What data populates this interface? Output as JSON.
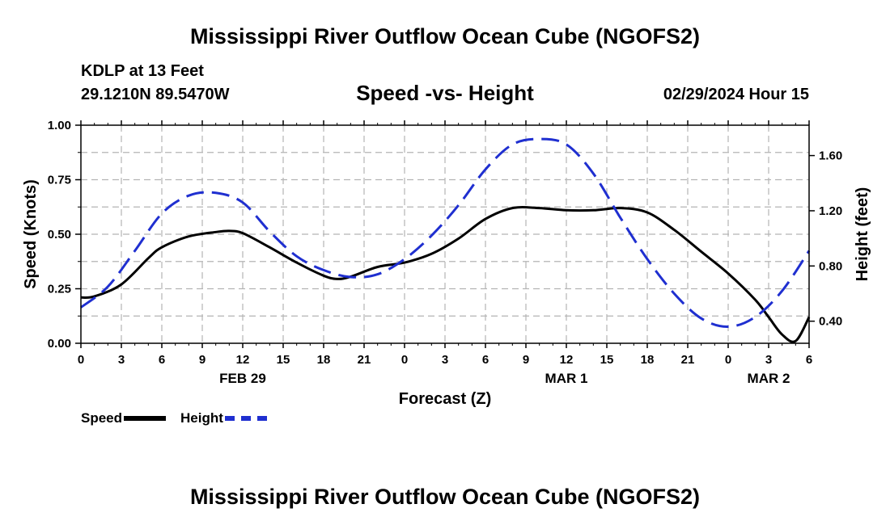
{
  "header": {
    "title": "Mississippi River Outflow Ocean Cube (NGOFS2)",
    "station": "KDLP at 13 Feet",
    "coordinates": "29.1210N  89.5470W",
    "subtitle": "Speed -vs- Height",
    "datetime": "02/29/2024 Hour 15"
  },
  "footer": {
    "title": "Mississippi River Outflow Ocean Cube (NGOFS2)"
  },
  "legend": {
    "speed_label": "Speed",
    "height_label": "Height"
  },
  "colors": {
    "speed": "#000000",
    "height": "#1f2fd0",
    "grid": "#b4b4b4"
  },
  "chart_data": {
    "type": "line",
    "title": "Speed -vs- Height",
    "xlabel": "Forecast (Z)",
    "ylabel": "Speed (Knots)",
    "y2label": "Height (feet)",
    "xlim": [
      0,
      54
    ],
    "ylim": [
      0,
      1.0
    ],
    "y2lim": [
      0.24,
      1.82
    ],
    "x_ticks": [
      0,
      3,
      6,
      9,
      12,
      15,
      18,
      21,
      24,
      27,
      30,
      33,
      36,
      39,
      42,
      45,
      48,
      51,
      54
    ],
    "x_tick_labels": [
      "0",
      "3",
      "6",
      "9",
      "12",
      "15",
      "18",
      "21",
      "0",
      "3",
      "6",
      "9",
      "12",
      "15",
      "18",
      "21",
      "0",
      "3",
      "6"
    ],
    "date_labels": [
      {
        "x": 12,
        "label": "FEB 29"
      },
      {
        "x": 36,
        "label": "MAR 1"
      },
      {
        "x": 51,
        "label": "MAR 2"
      }
    ],
    "y_ticks": [
      0,
      0.25,
      0.5,
      0.75,
      1.0
    ],
    "y_tick_labels": [
      "0.00",
      "0.25",
      "0.50",
      "0.75",
      "1.00"
    ],
    "y2_ticks": [
      0.4,
      0.8,
      1.2,
      1.6
    ],
    "y2_tick_labels": [
      "0.40",
      "0.80",
      "1.20",
      "1.60"
    ],
    "series": [
      {
        "name": "Speed",
        "axis": "left",
        "style": "solid",
        "x": [
          0,
          1,
          3,
          5,
          6,
          8,
          10,
          11,
          12,
          14,
          16,
          18,
          19,
          20,
          22,
          24,
          26,
          28,
          30,
          32,
          34,
          36,
          38,
          40,
          42,
          44,
          46,
          48,
          50,
          51,
          52,
          53,
          54
        ],
        "values": [
          0.21,
          0.215,
          0.27,
          0.39,
          0.44,
          0.49,
          0.51,
          0.515,
          0.505,
          0.44,
          0.37,
          0.31,
          0.295,
          0.305,
          0.35,
          0.37,
          0.41,
          0.48,
          0.57,
          0.62,
          0.62,
          0.61,
          0.61,
          0.62,
          0.6,
          0.52,
          0.42,
          0.32,
          0.2,
          0.12,
          0.04,
          0.01,
          0.12
        ]
      },
      {
        "name": "Height",
        "axis": "right",
        "style": "dashed",
        "x": [
          0,
          2,
          4,
          6,
          8,
          10,
          12,
          14,
          16,
          18,
          20,
          22,
          24,
          26,
          28,
          30,
          32,
          34,
          36,
          38,
          40,
          42,
          44,
          46,
          48,
          50,
          52,
          54
        ],
        "values": [
          0.5,
          0.65,
          0.91,
          1.18,
          1.31,
          1.33,
          1.26,
          1.05,
          0.87,
          0.77,
          0.72,
          0.74,
          0.85,
          1.02,
          1.24,
          1.5,
          1.68,
          1.72,
          1.68,
          1.47,
          1.15,
          0.85,
          0.6,
          0.42,
          0.36,
          0.43,
          0.62,
          0.91
        ]
      }
    ],
    "grid": true
  }
}
